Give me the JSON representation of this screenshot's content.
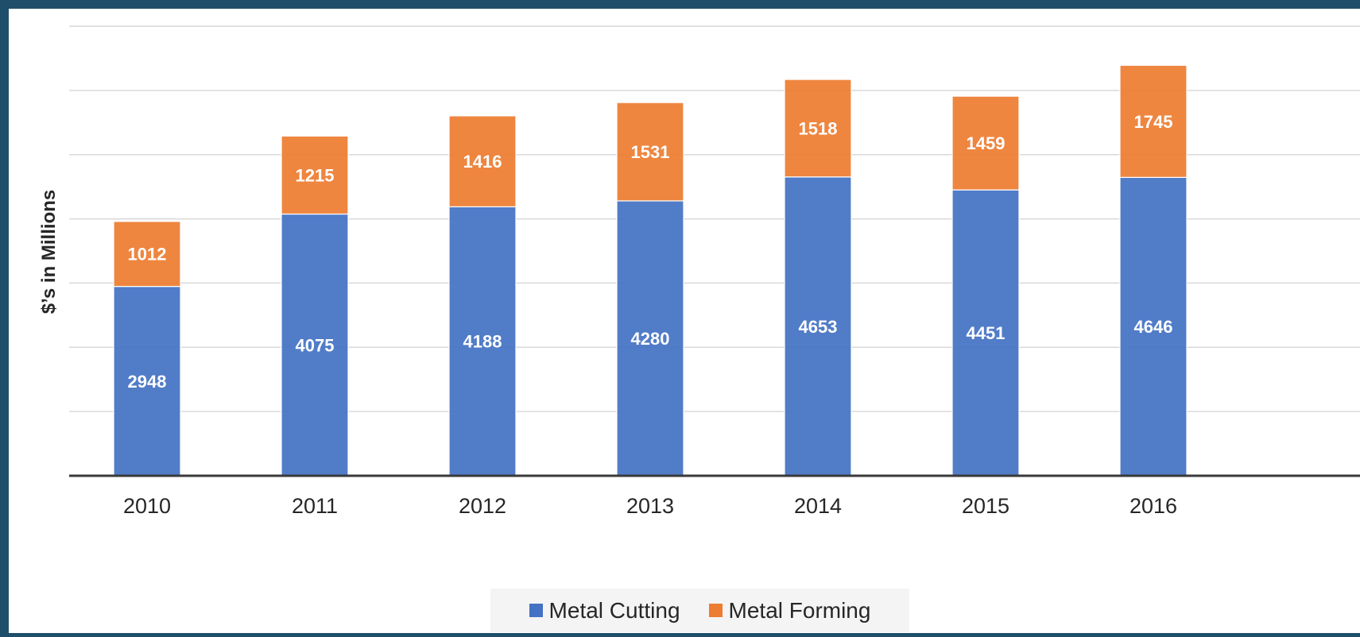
{
  "chart_data": {
    "type": "bar",
    "stacked": true,
    "title": "",
    "xlabel": "",
    "ylabel": "$’s in Millions",
    "categories": [
      "2010",
      "2011",
      "2012",
      "2013",
      "2014",
      "2015",
      "2016"
    ],
    "series": [
      {
        "name": "Metal Cutting",
        "color": "#4472c4",
        "values": [
          2948,
          4075,
          4188,
          4280,
          4653,
          4451,
          4646
        ]
      },
      {
        "name": "Metal Forming",
        "color": "#ed7d31",
        "values": [
          1012,
          1215,
          1416,
          1531,
          1518,
          1459,
          1745
        ]
      }
    ],
    "ylim": [
      0,
      7000
    ],
    "grid": true,
    "y_tick_labels_shown": false,
    "data_labels": true,
    "legend_position": "bottom"
  }
}
